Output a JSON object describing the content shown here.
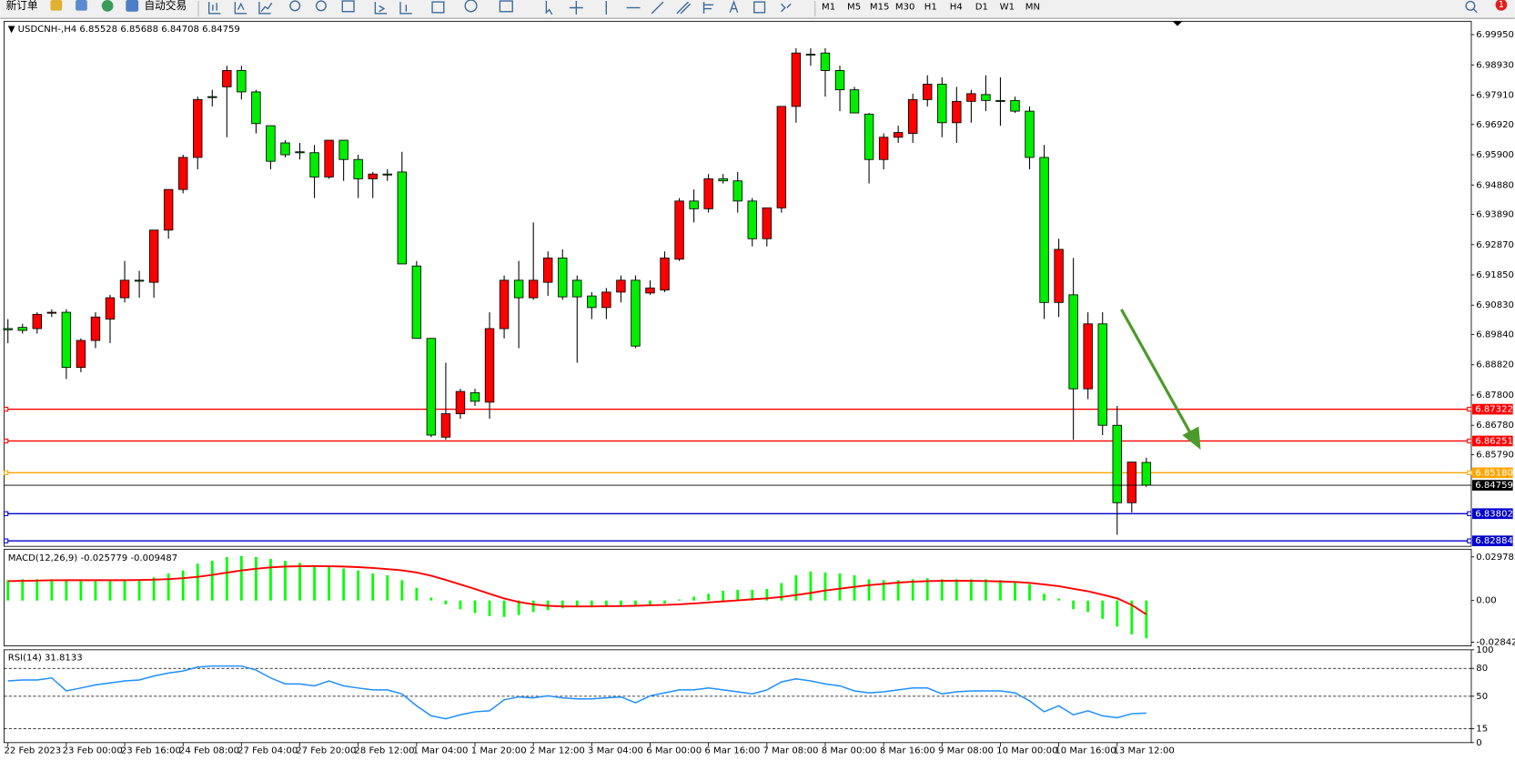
{
  "toolbar": {
    "new_order": "新订单",
    "auto_trading": "自动交易",
    "timeframes": [
      "M1",
      "M5",
      "M15",
      "M30",
      "H1",
      "H4",
      "D1",
      "W1",
      "MN"
    ],
    "badge": "1"
  },
  "chart_data": [
    {
      "type": "candlestick",
      "title": "USDCNH-,H4",
      "categories": [
        "22 Feb 2023",
        null,
        null,
        null,
        "23 Feb 00:00",
        null,
        null,
        null,
        "23 Feb 16:00",
        null,
        null,
        null,
        "24 Feb 08:00",
        null,
        null,
        null,
        "27 Feb 04:00",
        null,
        null,
        null,
        "27 Feb 20:00",
        null,
        null,
        null,
        "28 Feb 12:00",
        null,
        null,
        null,
        "1 Mar 04:00",
        null,
        null,
        null,
        "1 Mar 20:00",
        null,
        null,
        null,
        "2 Mar 12:00",
        null,
        null,
        null,
        "3 Mar 04:00",
        null,
        null,
        null,
        "6 Mar 00:00",
        null,
        null,
        null,
        "6 Mar 16:00",
        null,
        null,
        null,
        "7 Mar 08:00",
        null,
        null,
        null,
        "8 Mar 00:00",
        null,
        null,
        null,
        "8 Mar 16:00",
        null,
        null,
        null,
        "9 Mar 08:00",
        null,
        null,
        null,
        "10 Mar 00:00",
        null,
        null,
        null,
        "10 Mar 16:00",
        null,
        null,
        null,
        "13 Mar 12:00",
        null,
        null
      ],
      "open": [
        6.9004,
        6.9008,
        6.9004,
        6.9056,
        6.9059,
        6.8873,
        6.8964,
        6.9036,
        6.9108,
        6.9167,
        6.916,
        6.9336,
        6.9473,
        6.9581,
        6.9786,
        6.9819,
        6.9874,
        6.9802,
        6.9688,
        6.963,
        6.96,
        6.9597,
        6.9515,
        6.9639,
        6.9574,
        6.9509,
        6.9525,
        6.9532,
        6.9215,
        6.8971,
        6.8638,
        6.8717,
        6.8788,
        6.8756,
        6.9004,
        6.9167,
        6.9108,
        6.916,
        6.9242,
        6.9167,
        6.9114,
        6.9075,
        6.9127,
        6.9167,
        6.9124,
        6.9134,
        6.9238,
        6.9434,
        6.9408,
        6.9509,
        6.9502,
        6.9434,
        6.9307,
        6.9411,
        6.9753,
        6.9929,
        6.9933,
        6.9874,
        6.9809,
        6.9727,
        6.9574,
        6.9649,
        6.9662,
        6.9776,
        6.9828,
        6.9698,
        6.977,
        6.9793,
        6.9773,
        6.9773,
        6.9737,
        6.9581,
        6.9092,
        6.9118,
        6.8801,
        6.902,
        6.8678,
        6.8417,
        6.85528
      ],
      "high": [
        6.9036,
        6.902,
        6.9059,
        6.9069,
        6.9069,
        6.8971,
        6.9059,
        6.9118,
        6.9232,
        6.9199,
        6.9336,
        6.9473,
        6.959,
        6.9786,
        6.9809,
        6.989,
        6.989,
        6.9809,
        6.9688,
        6.9639,
        6.963,
        6.9623,
        6.9639,
        6.9639,
        6.959,
        6.9532,
        6.9541,
        6.96,
        6.9232,
        6.8971,
        6.8889,
        6.8801,
        6.8801,
        6.9059,
        6.9183,
        6.9232,
        6.9362,
        6.9264,
        6.9271,
        6.9183,
        6.9127,
        6.9141,
        6.9183,
        6.9183,
        6.9167,
        6.9264,
        6.9444,
        6.9473,
        6.9525,
        6.9525,
        6.9532,
        6.9444,
        6.9411,
        6.9753,
        6.9949,
        6.9949,
        6.9949,
        6.989,
        6.9819,
        6.9731,
        6.9662,
        6.9688,
        6.9796,
        6.9858,
        6.9851,
        6.9819,
        6.9809,
        6.9858,
        6.9851,
        6.9786,
        6.9753,
        6.9623,
        6.9307,
        6.9242,
        6.9059,
        6.9059,
        6.8743,
        6.8554,
        6.85688
      ],
      "low": [
        6.8955,
        6.8987,
        6.8987,
        6.9043,
        6.8834,
        6.8857,
        6.8938,
        6.8955,
        6.9092,
        6.9108,
        6.9108,
        6.9307,
        6.946,
        6.9541,
        6.9753,
        6.9649,
        6.9776,
        6.9662,
        6.9541,
        6.9581,
        6.9574,
        6.9444,
        6.9509,
        6.9502,
        6.9444,
        6.9444,
        6.9502,
        6.9222,
        6.8971,
        6.8638,
        6.8629,
        6.87,
        6.8743,
        6.87,
        6.8971,
        6.8938,
        6.9101,
        6.9114,
        6.9101,
        6.8889,
        6.9036,
        6.9036,
        6.9092,
        6.8938,
        6.9118,
        6.9127,
        6.9232,
        6.9362,
        6.9395,
        6.9493,
        6.9395,
        6.9281,
        6.9281,
        6.9395,
        6.9698,
        6.989,
        6.9786,
        6.9737,
        6.9731,
        6.9493,
        6.9541,
        6.963,
        6.963,
        6.9753,
        6.9649,
        6.963,
        6.9698,
        6.9737,
        6.9688,
        6.9731,
        6.9541,
        6.9036,
        6.9043,
        6.8629,
        6.8766,
        6.8645,
        6.8309,
        6.8384,
        6.84708
      ],
      "close": [
        6.9,
        6.8998,
        6.9052,
        6.9059,
        6.8873,
        6.8964,
        6.9043,
        6.9108,
        6.9167,
        6.9167,
        6.9336,
        6.9473,
        6.9581,
        6.9776,
        6.9786,
        6.9874,
        6.9802,
        6.9695,
        6.9568,
        6.959,
        6.96,
        6.9515,
        6.9639,
        6.9574,
        6.9509,
        6.9525,
        6.9525,
        6.9222,
        6.8971,
        6.8645,
        6.8717,
        6.8792,
        6.8759,
        6.9004,
        6.9167,
        6.9108,
        6.9167,
        6.9242,
        6.9111,
        6.9111,
        6.9075,
        6.9127,
        6.9167,
        6.8945,
        6.9141,
        6.9242,
        6.9434,
        6.9408,
        6.9509,
        6.9502,
        6.9434,
        6.9307,
        6.9411,
        6.9753,
        6.9933,
        6.9929,
        6.9874,
        6.9809,
        6.9731,
        6.9574,
        6.9649,
        6.9665,
        6.9776,
        6.9828,
        6.9698,
        6.977,
        6.9796,
        6.9773,
        6.9773,
        6.9737,
        6.9581,
        6.9092,
        6.9271,
        6.8801,
        6.902,
        6.8678,
        6.8417,
        6.8554,
        6.84759
      ],
      "up_color": "#ff0000",
      "down_color": "#00ee00",
      "ylim": [
        6.827,
        7.004
      ],
      "yticks": [
        {
          "value": 6.9995,
          "label": "6.99950"
        },
        {
          "value": 6.9893,
          "label": "6.98930"
        },
        {
          "value": 6.9791,
          "label": "6.97910"
        },
        {
          "value": 6.9692,
          "label": "6.96920"
        },
        {
          "value": 6.959,
          "label": "6.95900"
        },
        {
          "value": 6.9488,
          "label": "6.94880"
        },
        {
          "value": 6.9389,
          "label": "6.93890"
        },
        {
          "value": 6.9287,
          "label": "6.92870"
        },
        {
          "value": 6.9185,
          "label": "6.91850"
        },
        {
          "value": 6.9083,
          "label": "6.90830"
        },
        {
          "value": 6.8984,
          "label": "6.89840"
        },
        {
          "value": 6.8882,
          "label": "6.88820"
        },
        {
          "value": 6.878,
          "label": "6.87800"
        },
        {
          "value": 6.8678,
          "label": "6.86780"
        },
        {
          "value": 6.8579,
          "label": "6.85790"
        }
      ],
      "levels": [
        {
          "value": 6.87322,
          "color": "#ff0000"
        },
        {
          "value": 6.86251,
          "color": "#ff0000"
        },
        {
          "value": 6.8518,
          "label": "6.85180",
          "color": "#ffa500"
        },
        {
          "value": 6.83802,
          "color": "#0000cc"
        },
        {
          "value": 6.82884,
          "color": "#0000cc"
        }
      ],
      "grid": false
    },
    {
      "type": "macd",
      "title": "MACD(12,26,9)",
      "histogram": [
        0.0139,
        0.0145,
        0.0145,
        0.0145,
        0.0139,
        0.0132,
        0.0132,
        0.0139,
        0.0139,
        0.0145,
        0.0158,
        0.0185,
        0.0205,
        0.0251,
        0.0271,
        0.0297,
        0.0304,
        0.0297,
        0.0284,
        0.0271,
        0.0257,
        0.0238,
        0.0231,
        0.0218,
        0.0205,
        0.0185,
        0.0172,
        0.0139,
        0.0086,
        0.002,
        -0.0026,
        -0.0059,
        -0.0086,
        -0.0106,
        -0.0112,
        -0.0099,
        -0.0079,
        -0.0066,
        -0.0053,
        -0.0046,
        -0.0046,
        -0.004,
        -0.0033,
        -0.004,
        -0.0033,
        -0.002,
        0.0007,
        0.0026,
        0.0046,
        0.0066,
        0.0073,
        0.0073,
        0.0079,
        0.0119,
        0.0172,
        0.0198,
        0.0191,
        0.0185,
        0.0172,
        0.0145,
        0.0139,
        0.0139,
        0.0145,
        0.0152,
        0.0145,
        0.0145,
        0.0145,
        0.0145,
        0.0139,
        0.0132,
        0.0112,
        0.0046,
        0.0013,
        -0.0059,
        -0.0079,
        -0.0125,
        -0.0178,
        -0.0231,
        -0.025779
      ],
      "signal": [
        0.0132,
        0.0134,
        0.0136,
        0.0138,
        0.0139,
        0.0139,
        0.0139,
        0.0139,
        0.0139,
        0.014,
        0.0142,
        0.0146,
        0.0152,
        0.0162,
        0.0175,
        0.019,
        0.0205,
        0.0217,
        0.0226,
        0.0232,
        0.0234,
        0.0235,
        0.0234,
        0.0232,
        0.0228,
        0.0222,
        0.0215,
        0.0206,
        0.0191,
        0.0169,
        0.0141,
        0.011,
        0.0079,
        0.0046,
        0.0014,
        -0.001,
        -0.0026,
        -0.0036,
        -0.004,
        -0.004,
        -0.004,
        -0.0039,
        -0.0038,
        -0.0036,
        -0.0033,
        -0.003,
        -0.0026,
        -0.002,
        -0.0013,
        -0.0006,
        0.0001,
        0.0008,
        0.0015,
        0.0024,
        0.0037,
        0.0052,
        0.0068,
        0.0081,
        0.0093,
        0.0105,
        0.0114,
        0.0122,
        0.0128,
        0.0132,
        0.0134,
        0.0135,
        0.0134,
        0.0133,
        0.013,
        0.0127,
        0.012,
        0.011,
        0.0098,
        0.008,
        0.0063,
        0.004,
        0.0015,
        -0.003,
        -0.009487
      ],
      "histogram_color": "#00ff00",
      "signal_color": "#ff0000",
      "ylim": [
        -0.031,
        0.035
      ],
      "yticks": [
        0.029785,
        {
          "value": 0,
          "label": "0.00"
        },
        -0.028425
      ],
      "grid": false
    },
    {
      "type": "line",
      "title": "RSI(14)",
      "values": [
        66.5,
        67.5,
        67.5,
        69.7,
        55.7,
        58.9,
        62.2,
        64.3,
        66.5,
        67.5,
        71.8,
        75.0,
        77.2,
        81.5,
        82.5,
        82.5,
        82.5,
        78.2,
        69.7,
        63.2,
        63.2,
        61.1,
        66.5,
        61.1,
        58.9,
        56.8,
        56.8,
        52.5,
        39.7,
        28.9,
        25.7,
        30.0,
        33.2,
        34.3,
        46.1,
        49.3,
        48.2,
        50.4,
        48.2,
        47.2,
        47.2,
        48.2,
        49.3,
        42.9,
        50.4,
        53.6,
        56.8,
        56.8,
        58.9,
        56.8,
        54.7,
        52.5,
        56.8,
        65.4,
        68.6,
        66.5,
        63.2,
        61.1,
        55.7,
        53.6,
        54.7,
        56.8,
        58.9,
        58.9,
        52.5,
        54.7,
        55.7,
        55.7,
        55.7,
        53.6,
        45.0,
        33.2,
        39.7,
        30.0,
        34.3,
        28.9,
        26.8,
        31.1,
        31.8133
      ],
      "color": "#1e8fff",
      "ylim": [
        0,
        100
      ],
      "yticks": [
        100,
        80,
        50,
        15,
        0
      ],
      "grid": true
    }
  ]
}
